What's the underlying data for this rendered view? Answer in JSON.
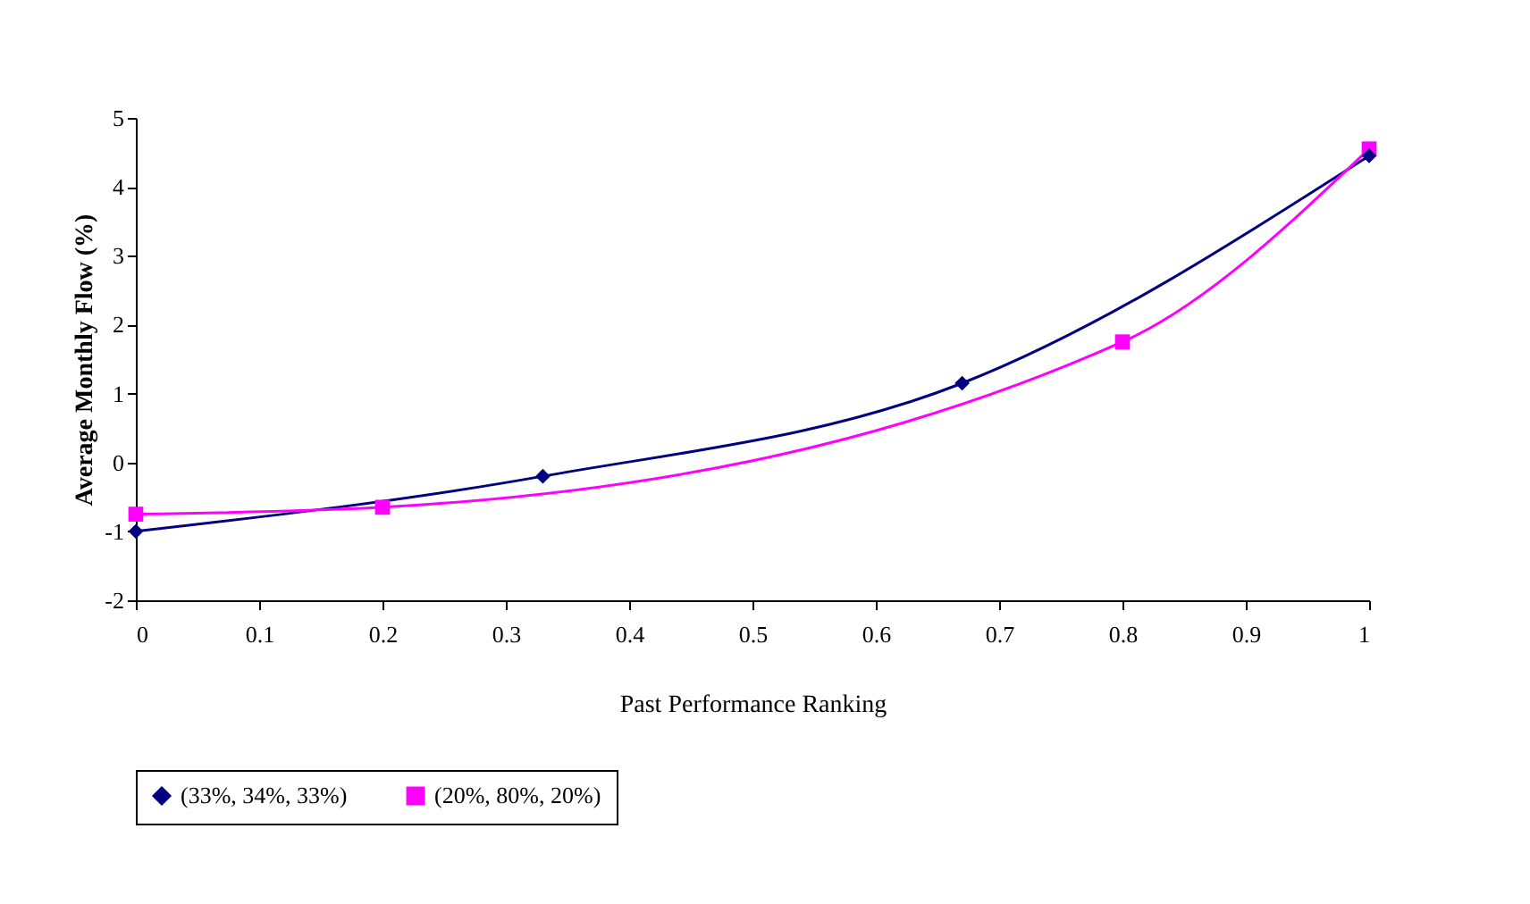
{
  "chart_data": {
    "type": "line",
    "xlabel": "Past Performance Ranking",
    "ylabel": "Average Monthly Flow (%)",
    "xlim": [
      0,
      1
    ],
    "xticks": [
      0,
      0.1,
      0.2,
      0.3,
      0.4,
      0.5,
      0.6,
      0.7,
      0.8,
      0.9,
      1
    ],
    "ylim": [
      -2,
      5
    ],
    "yticks": [
      -2,
      -1,
      0,
      1,
      2,
      3,
      4,
      5
    ],
    "grid": false,
    "legend": "bottom",
    "line_style": "solid",
    "series": [
      {
        "name": "(33%, 34%, 33%)",
        "color": "#000080",
        "marker": "diamond",
        "x": [
          0,
          0.33,
          0.67,
          1
        ],
        "values": [
          -1.0,
          -0.2,
          1.15,
          4.45
        ]
      },
      {
        "name": "(20%, 80%, 20%)",
        "color": "#ff00ff",
        "marker": "square",
        "x": [
          0,
          0.2,
          0.8,
          1
        ],
        "values": [
          -0.75,
          -0.65,
          1.75,
          4.55
        ]
      }
    ]
  }
}
